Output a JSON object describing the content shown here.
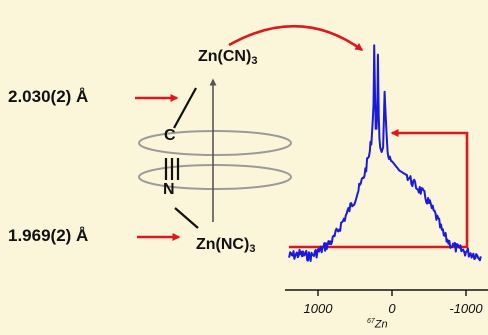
{
  "labels": {
    "bond_top": "2.030(2) Å",
    "bond_bottom": "1.969(2) Å",
    "zn_top_base": "Zn(CN)",
    "zn_top_sub": "3",
    "zn_bottom_base": "Zn(NC)",
    "zn_bottom_sub": "3",
    "atom_c": "C",
    "atom_n": "N",
    "axis_sup": "67",
    "axis_base": "Zn"
  },
  "chart_data": {
    "type": "line",
    "x_ticks": [
      "1000",
      "0",
      "-1000"
    ],
    "x_tick_values": [
      1000,
      0,
      -1000
    ],
    "xlabel": "⁶⁷Zn",
    "series": [
      {
        "x": [
          1400,
          1250,
          1100,
          950,
          800,
          700,
          600,
          500,
          420,
          360,
          300,
          270,
          250,
          240,
          230,
          220,
          210,
          200,
          190,
          180,
          170,
          160,
          140,
          120,
          100,
          80,
          60,
          50,
          40,
          30,
          20,
          10,
          0,
          -100,
          -200,
          -300,
          -400,
          -500,
          -600,
          -700,
          -800,
          -900,
          -1000,
          -1100,
          -1200
        ],
        "y": [
          0.05,
          0.06,
          0.05,
          0.08,
          0.12,
          0.18,
          0.24,
          0.3,
          0.36,
          0.42,
          0.5,
          0.58,
          0.7,
          0.96,
          0.75,
          0.6,
          0.6,
          0.66,
          0.92,
          0.66,
          0.56,
          0.52,
          0.5,
          0.52,
          0.76,
          0.62,
          0.5,
          0.48,
          0.47,
          0.48,
          0.47,
          0.46,
          0.46,
          0.42,
          0.4,
          0.36,
          0.33,
          0.28,
          0.22,
          0.14,
          0.1,
          0.08,
          0.07,
          0.06,
          0.05
        ]
      }
    ]
  },
  "colors": {
    "spectrum": "#1a1adb",
    "arrow": "#e0161b",
    "background": "#fbf6da",
    "ring": "#9a9a9a",
    "text": "#111111"
  }
}
